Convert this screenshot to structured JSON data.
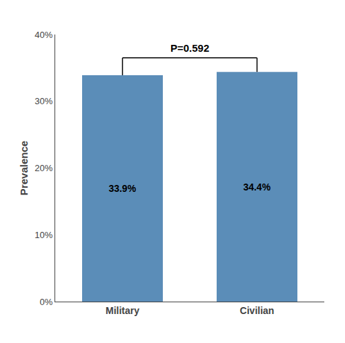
{
  "chart_data": {
    "type": "bar",
    "categories": [
      "Military",
      "Civilian"
    ],
    "values": [
      33.9,
      34.4
    ],
    "color": "#5B8DB8",
    "data_labels": true,
    "value_labels": [
      "33.9%",
      "34.4%"
    ],
    "ylabel": "Prevalence",
    "ylim": [
      0,
      40
    ],
    "yticks": [
      {
        "value": 0,
        "label": "0%"
      },
      {
        "value": 10,
        "label": "10%"
      },
      {
        "value": 20,
        "label": "20%"
      },
      {
        "value": 30,
        "label": "30%"
      },
      {
        "value": 40,
        "label": "40%"
      }
    ],
    "grid": false,
    "annotations": [
      {
        "text": "P=0.592",
        "from": "Military",
        "to": "Civilian",
        "y": 36.5
      }
    ]
  }
}
